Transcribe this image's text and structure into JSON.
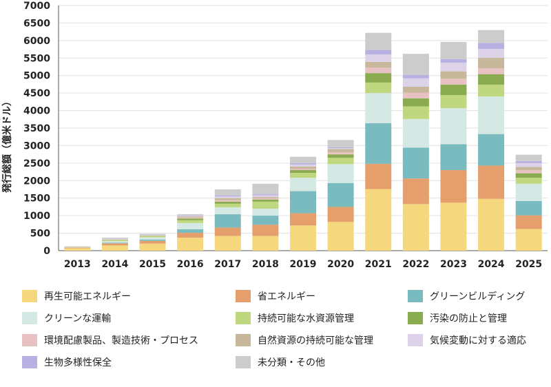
{
  "chart_data": {
    "type": "bar",
    "stacked": true,
    "ylabel": "発行総額（億米ドル）",
    "xlabel": "",
    "title": "",
    "ylim": [
      0,
      7000
    ],
    "yticks": [
      0,
      500,
      1000,
      1500,
      2000,
      2500,
      3000,
      3500,
      4000,
      4500,
      5000,
      5500,
      6000,
      6500,
      7000
    ],
    "grid": true,
    "legend_position": "bottom",
    "categories": [
      "2013",
      "2014",
      "2015",
      "2016",
      "2017",
      "2018",
      "2019",
      "2020",
      "2021",
      "2022",
      "2023",
      "2024",
      "2025"
    ],
    "series": [
      {
        "name": "再生可能エネルギー",
        "color": "#f5d77d",
        "values": [
          70,
          150,
          200,
          370,
          420,
          420,
          720,
          820,
          1760,
          1330,
          1370,
          1480,
          620
        ]
      },
      {
        "name": "省エネルギー",
        "color": "#e49f6d",
        "values": [
          20,
          60,
          80,
          140,
          240,
          320,
          350,
          430,
          720,
          730,
          930,
          950,
          390
        ]
      },
      {
        "name": "グリーンビルディング",
        "color": "#79bbbf",
        "values": [
          0,
          20,
          40,
          100,
          380,
          260,
          630,
          680,
          1160,
          880,
          740,
          900,
          410
        ]
      },
      {
        "name": "クリーンな運輸",
        "color": "#d4e8e4",
        "values": [
          10,
          40,
          60,
          180,
          200,
          200,
          380,
          540,
          860,
          820,
          1030,
          1070,
          490
        ]
      },
      {
        "name": "持続可能な水資源管理",
        "color": "#bfd77f",
        "values": [
          5,
          30,
          30,
          80,
          100,
          200,
          140,
          180,
          300,
          360,
          370,
          340,
          170
        ]
      },
      {
        "name": "汚染の防止と管理",
        "color": "#8aab4f",
        "values": [
          0,
          10,
          10,
          50,
          60,
          60,
          80,
          100,
          270,
          230,
          300,
          300,
          130
        ]
      },
      {
        "name": "環境配慮製品、製造技術・プロセス",
        "color": "#e8c2c3",
        "values": [
          0,
          5,
          5,
          30,
          40,
          30,
          40,
          60,
          160,
          160,
          170,
          170,
          90
        ]
      },
      {
        "name": "自然資源の持続可能な管理",
        "color": "#c7b79b",
        "values": [
          0,
          5,
          10,
          30,
          60,
          40,
          60,
          90,
          160,
          170,
          210,
          300,
          90
        ]
      },
      {
        "name": "気候変動に対する適応",
        "color": "#ddd3e8",
        "values": [
          0,
          10,
          10,
          20,
          50,
          50,
          60,
          30,
          210,
          240,
          250,
          250,
          110
        ]
      },
      {
        "name": "生物多様性保全",
        "color": "#b8b0e0",
        "values": [
          0,
          0,
          0,
          10,
          30,
          30,
          40,
          20,
          130,
          100,
          100,
          170,
          60
        ]
      },
      {
        "name": "未分類・その他",
        "color": "#cccccc",
        "values": [
          20,
          40,
          35,
          30,
          170,
          300,
          180,
          210,
          490,
          600,
          490,
          370,
          180
        ]
      }
    ]
  }
}
